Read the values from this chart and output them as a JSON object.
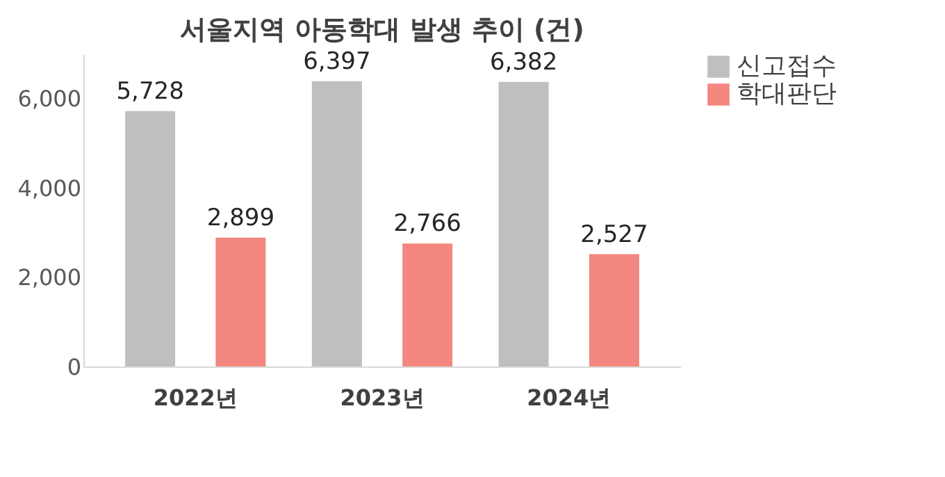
{
  "chart_data": {
    "type": "bar",
    "title": "서울지역 아동학대 발생 추이 (건)",
    "categories": [
      "2022년",
      "2023년",
      "2024년"
    ],
    "series": [
      {
        "name": "신고접수",
        "color": "#bfbfbf",
        "values": [
          5728,
          6397,
          6382
        ],
        "value_labels": [
          "5,728",
          "6,397",
          "6,382"
        ]
      },
      {
        "name": "학대판단",
        "color": "#f4877f",
        "values": [
          2899,
          2766,
          2527
        ],
        "value_labels": [
          "2,899",
          "2,766",
          "2,527"
        ]
      }
    ],
    "ylim": [
      0,
      7000
    ],
    "yticks": [
      0,
      {
        "value": 2000,
        "label": "2,000"
      },
      {
        "value": 4000,
        "label": "4,000"
      },
      {
        "value": 6000,
        "label": "6,000"
      }
    ],
    "grid": false,
    "legend": "right"
  }
}
